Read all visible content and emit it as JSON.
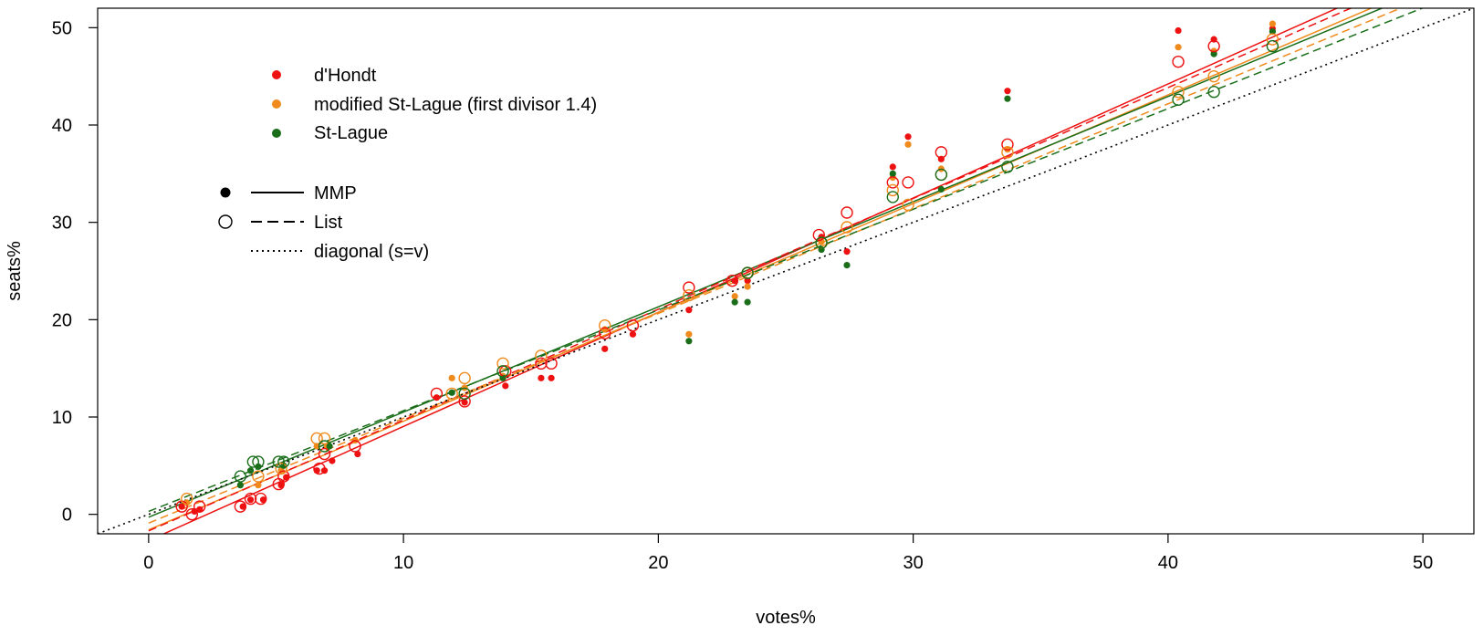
{
  "chart_data": {
    "type": "scatter",
    "xlabel": "votes%",
    "ylabel": "seats%",
    "xlim": [
      -2,
      52
    ],
    "ylim": [
      -2,
      52
    ],
    "xticks": [
      0,
      10,
      20,
      30,
      40,
      50
    ],
    "yticks": [
      0,
      10,
      20,
      30,
      40,
      50
    ],
    "grid": false,
    "legend_placement": "top-left",
    "legend_methods": [
      {
        "label": "d'Hondt",
        "color": "#ee1111"
      },
      {
        "label": "modified St-Lague (first divisor 1.4)",
        "color": "#f08a1c"
      },
      {
        "label": "St-Lague",
        "color": "#1a6e1a"
      }
    ],
    "legend_systems": [
      {
        "label": "MMP",
        "marker": "filled",
        "line": "solid"
      },
      {
        "label": "List",
        "marker": "open",
        "line": "dashed"
      },
      {
        "label": "diagonal (s=v)",
        "marker": "none",
        "line": "dotted"
      }
    ],
    "series": [
      {
        "name": "d'Hondt",
        "system": "MMP",
        "color": "#ee1111",
        "x": [
          1.3,
          1.8,
          2.0,
          3.7,
          4.0,
          4.5,
          5.2,
          5.4,
          6.6,
          6.9,
          7.2,
          8.2,
          11.3,
          12.4,
          14.0,
          15.4,
          15.8,
          17.9,
          19.0,
          21.2,
          23.0,
          23.5,
          26.4,
          27.4,
          29.2,
          29.8,
          31.1,
          33.7,
          40.4,
          41.8,
          44.1
        ],
        "y": [
          0.8,
          0.3,
          0.5,
          0.8,
          1.5,
          1.5,
          3.0,
          3.8,
          4.5,
          4.5,
          5.5,
          6.2,
          12.0,
          11.5,
          13.2,
          14.0,
          14.0,
          17.0,
          18.5,
          21.0,
          24.0,
          24.0,
          28.5,
          27.0,
          35.7,
          38.8,
          36.5,
          43.5,
          49.7,
          48.8,
          49.9
        ]
      },
      {
        "name": "modified St-Lague (first divisor 1.4)",
        "system": "MMP",
        "color": "#f08a1c",
        "x": [
          1.5,
          4.3,
          5.2,
          6.6,
          7.0,
          8.1,
          11.9,
          12.4,
          13.9,
          17.9,
          21.2,
          23.0,
          23.5,
          26.4,
          29.2,
          29.8,
          31.1,
          33.7,
          40.4,
          41.8,
          44.1
        ],
        "y": [
          1.2,
          3.0,
          4.5,
          7.0,
          7.0,
          7.6,
          14.0,
          13.0,
          14.2,
          19.0,
          18.5,
          22.4,
          23.4,
          28.0,
          34.6,
          38.0,
          35.5,
          37.5,
          48.0,
          47.6,
          50.4
        ]
      },
      {
        "name": "St-Lague",
        "system": "MMP",
        "color": "#1a6e1a",
        "x": [
          3.6,
          4.0,
          4.3,
          5.3,
          7.1,
          11.9,
          13.9,
          21.2,
          23.0,
          23.5,
          26.4,
          27.4,
          29.2,
          31.1,
          33.7,
          41.8,
          44.1
        ],
        "y": [
          3.0,
          4.5,
          4.9,
          5.0,
          7.0,
          12.5,
          14.0,
          17.8,
          21.8,
          21.8,
          27.2,
          25.6,
          35.0,
          33.4,
          42.7,
          47.3,
          49.6
        ]
      },
      {
        "name": "d'Hondt",
        "system": "List",
        "color": "#ee1111",
        "x": [
          1.3,
          1.7,
          2.0,
          3.6,
          4.0,
          4.4,
          5.1,
          5.3,
          6.7,
          6.9,
          8.1,
          11.3,
          12.4,
          14.0,
          15.4,
          15.8,
          17.9,
          19.0,
          21.2,
          22.9,
          23.5,
          26.3,
          27.4,
          29.2,
          29.8,
          31.1,
          33.7,
          40.4,
          41.8
        ],
        "y": [
          0.8,
          0.0,
          0.8,
          0.8,
          1.6,
          1.6,
          3.1,
          3.9,
          4.7,
          6.2,
          7.0,
          12.4,
          11.6,
          14.7,
          15.5,
          15.5,
          18.6,
          19.4,
          23.3,
          24.0,
          24.8,
          28.7,
          31.0,
          34.1,
          34.1,
          37.2,
          38.0,
          46.5,
          48.1
        ]
      },
      {
        "name": "modified St-Lague (first divisor 1.4)",
        "system": "List",
        "color": "#f08a1c",
        "x": [
          1.5,
          4.3,
          5.2,
          6.6,
          6.9,
          11.9,
          12.4,
          13.9,
          15.4,
          17.9,
          21.2,
          23.5,
          26.4,
          27.4,
          29.2,
          29.8,
          31.1,
          33.7,
          40.4,
          41.8,
          44.1
        ],
        "y": [
          1.6,
          3.9,
          4.7,
          7.8,
          7.8,
          12.4,
          14.0,
          15.5,
          16.3,
          19.4,
          22.5,
          24.8,
          27.9,
          29.5,
          33.3,
          31.8,
          34.9,
          37.2,
          43.4,
          45.0,
          48.8
        ]
      },
      {
        "name": "St-Lague",
        "system": "List",
        "color": "#1a6e1a",
        "x": [
          3.6,
          4.1,
          4.3,
          5.1,
          5.3,
          6.9,
          12.4,
          13.9,
          23.5,
          26.4,
          29.2,
          31.1,
          33.7,
          40.4,
          41.8,
          44.1
        ],
        "y": [
          3.9,
          5.4,
          5.4,
          5.4,
          5.4,
          7.0,
          12.4,
          14.7,
          24.8,
          27.9,
          32.6,
          34.9,
          35.7,
          42.6,
          43.4,
          48.1
        ]
      }
    ],
    "fit_lines": [
      {
        "name": "d'Hondt",
        "system": "MMP",
        "color": "#ee1111",
        "style": "solid",
        "x": [
          0,
          52
        ],
        "y": [
          -2.7,
          58.3
        ]
      },
      {
        "name": "modified St-Lague (first divisor 1.4)",
        "system": "MMP",
        "color": "#f08a1c",
        "style": "solid",
        "x": [
          0,
          52
        ],
        "y": [
          -1.6,
          56.5
        ]
      },
      {
        "name": "St-Lague",
        "system": "MMP",
        "color": "#1a6e1a",
        "style": "solid",
        "x": [
          0,
          52
        ],
        "y": [
          -0.3,
          55.9
        ]
      },
      {
        "name": "d'Hondt",
        "system": "List",
        "color": "#ee1111",
        "style": "dashed",
        "x": [
          0,
          52
        ],
        "y": [
          -1.7,
          57.5
        ]
      },
      {
        "name": "modified St-Lague (first divisor 1.4)",
        "system": "List",
        "color": "#f08a1c",
        "style": "dashed",
        "x": [
          0,
          52
        ],
        "y": [
          -0.9,
          55.1
        ]
      },
      {
        "name": "St-Lague",
        "system": "List",
        "color": "#1a6e1a",
        "style": "dashed",
        "x": [
          0,
          52
        ],
        "y": [
          0.3,
          54.1
        ]
      },
      {
        "name": "diagonal (s=v)",
        "system": "diagonal",
        "color": "#000000",
        "style": "dotted",
        "x": [
          -2,
          52
        ],
        "y": [
          -2,
          52
        ]
      }
    ]
  }
}
